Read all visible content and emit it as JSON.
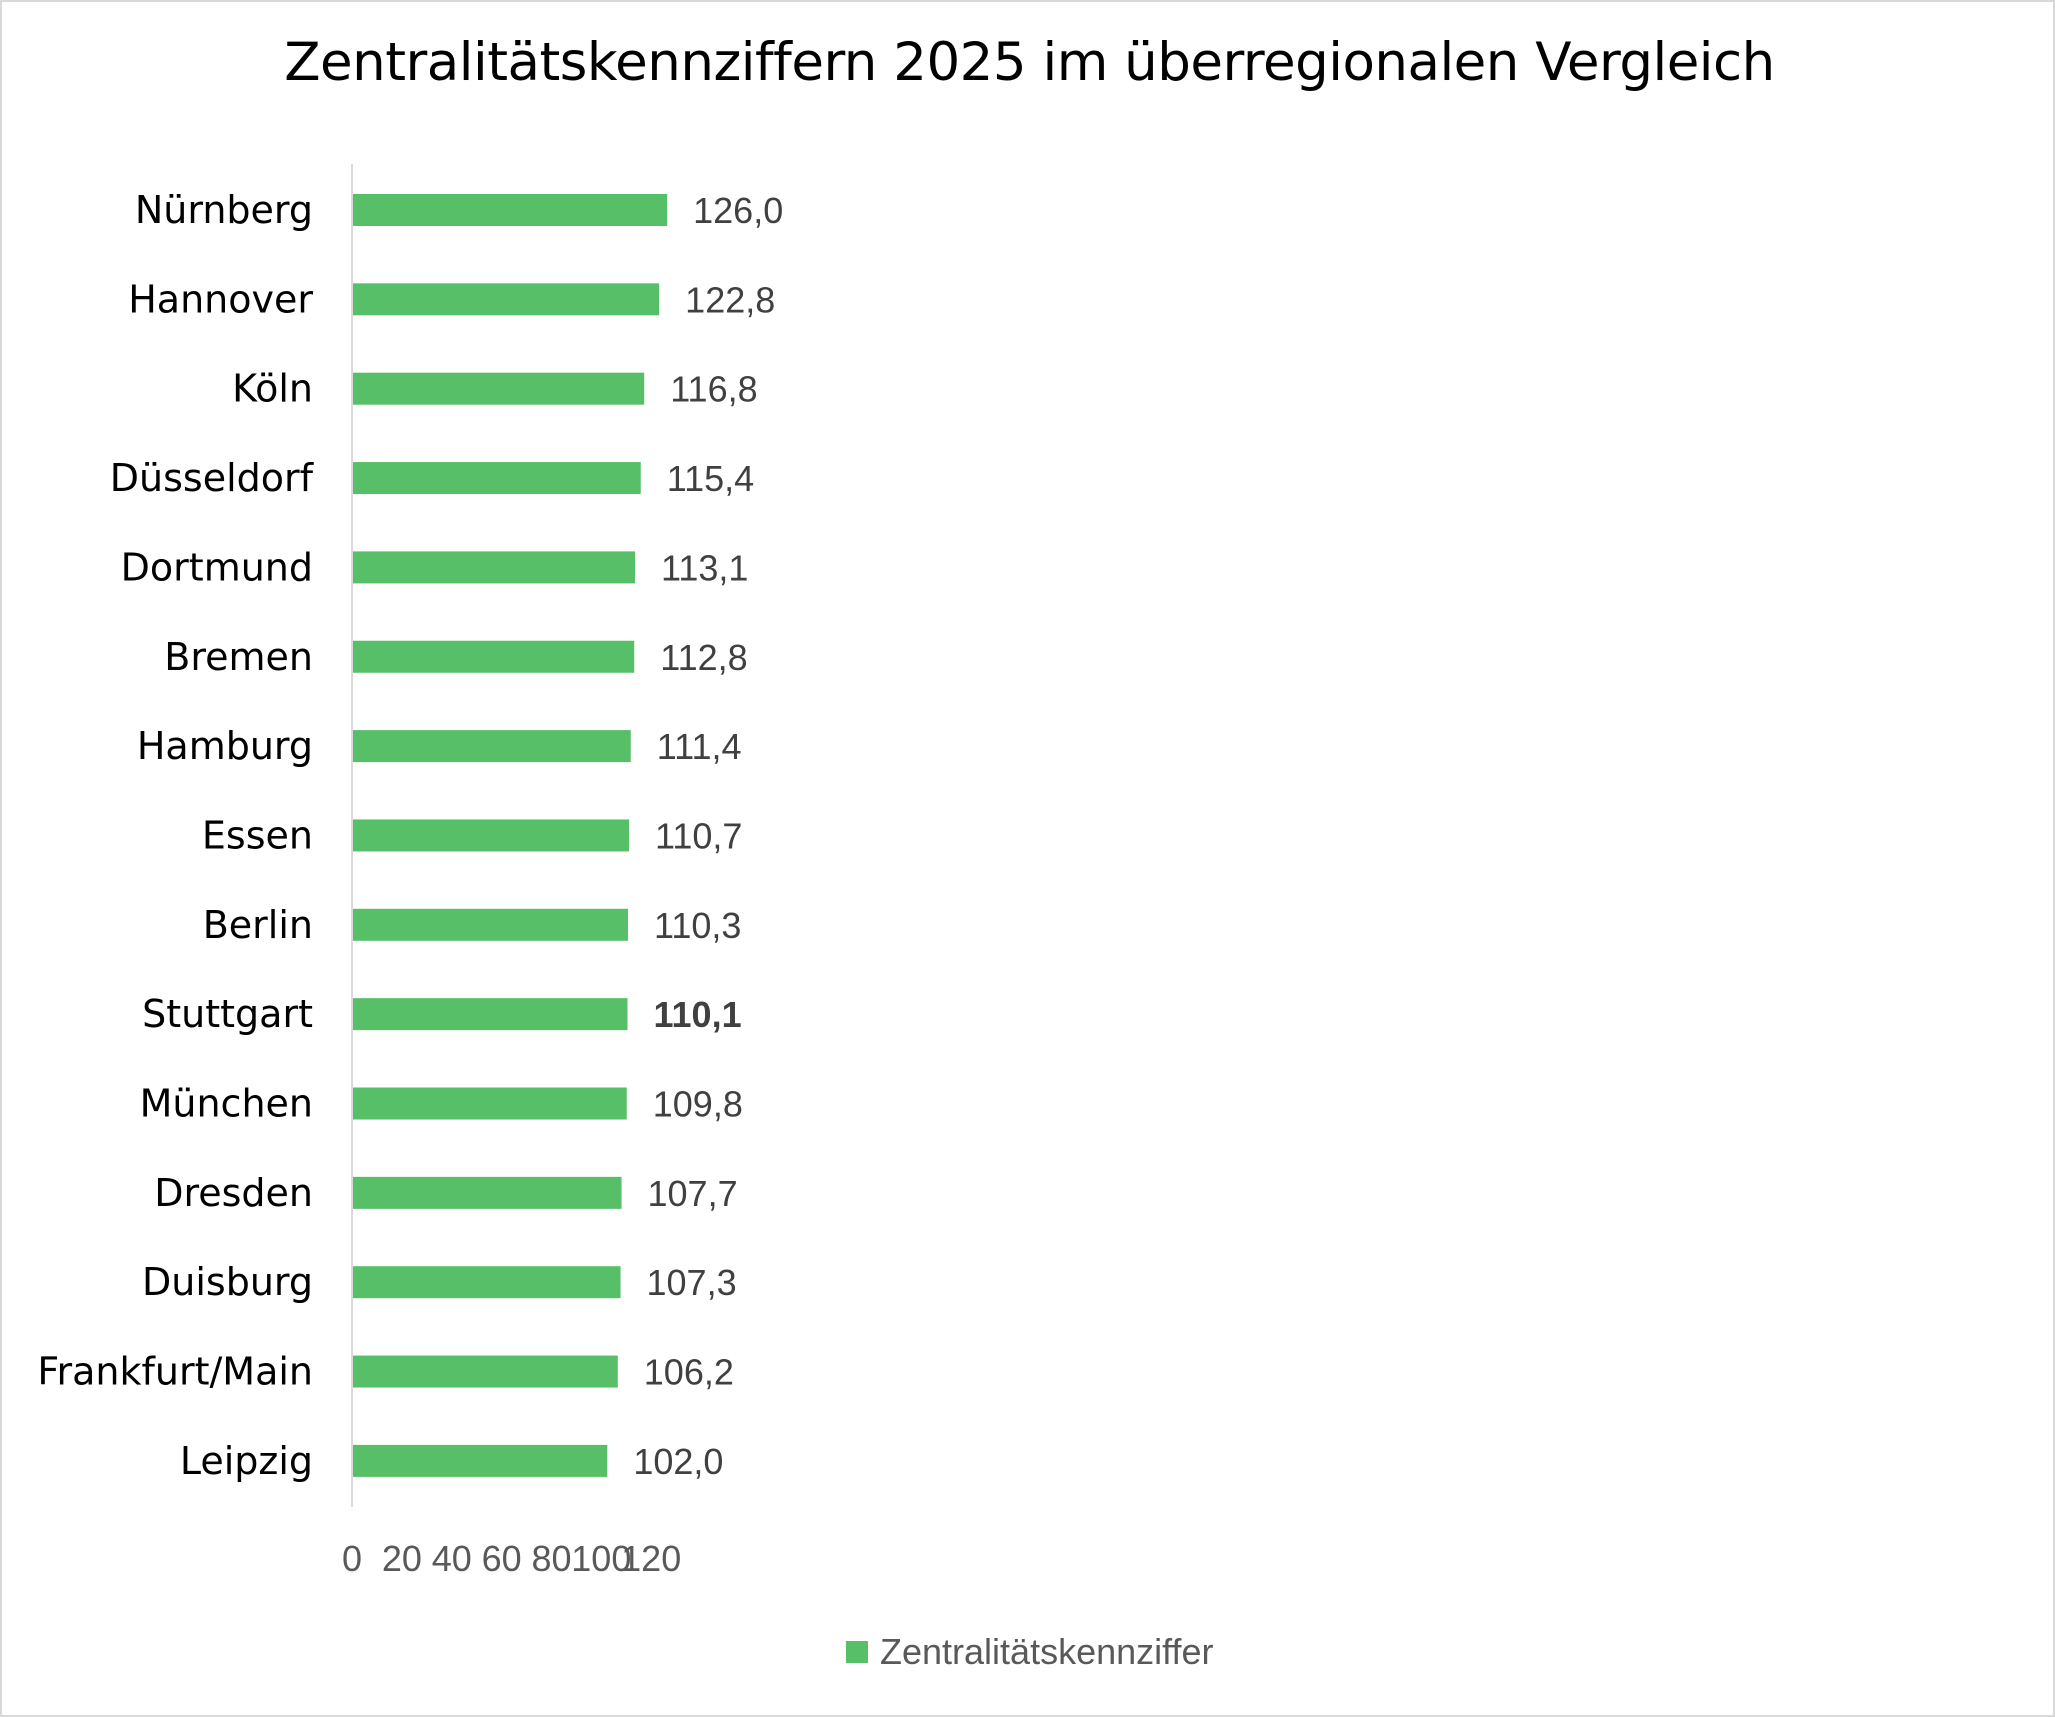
{
  "chart_data": {
    "type": "bar",
    "orientation": "horizontal",
    "title": "Zentralitätskennziffern 2025 im überregionalen Vergleich",
    "categories": [
      "Nürnberg",
      "Hannover",
      "Köln",
      "Düsseldorf",
      "Dortmund",
      "Bremen",
      "Hamburg",
      "Essen",
      "Berlin",
      "Stuttgart",
      "München",
      "Dresden",
      "Duisburg",
      "Frankfurt/Main",
      "Leipzig"
    ],
    "series": [
      {
        "name": "Zentralitätskennziffer",
        "values": [
          126.0,
          122.8,
          116.8,
          115.4,
          113.1,
          112.8,
          111.4,
          110.7,
          110.3,
          110.1,
          109.8,
          107.7,
          107.3,
          106.2,
          102.0
        ],
        "labels": [
          "126,0",
          "122,8",
          "116,8",
          "115,4",
          "113,1",
          "112,8",
          "111,4",
          "110,7",
          "110,3",
          "110,1",
          "109,8",
          "107,7",
          "107,3",
          "106,2",
          "102,0"
        ],
        "color": "#56bf67"
      }
    ],
    "highlighted_category": "Stuttgart",
    "xlim": [
      0,
      120
    ],
    "xticks": [
      "0",
      "20",
      "40",
      "60",
      "80",
      "100",
      "120"
    ],
    "grid": false,
    "legend_position": "bottom"
  }
}
